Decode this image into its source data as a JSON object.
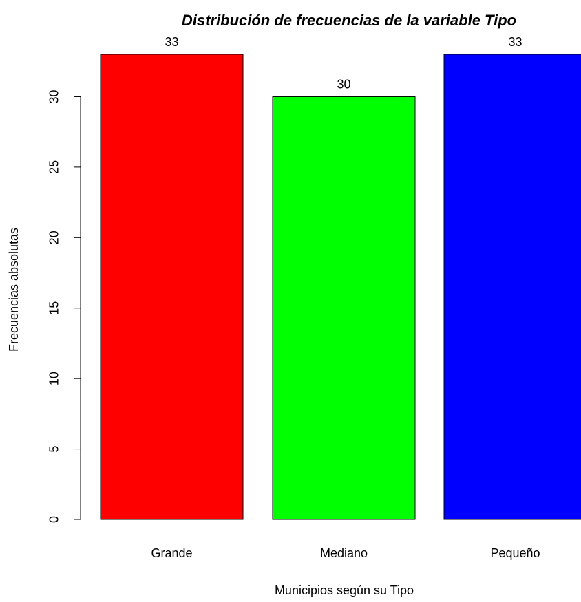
{
  "chart_data": {
    "type": "bar",
    "title": "Distribución de frecuencias de la variable Tipo",
    "xlabel": "Municipios según su Tipo",
    "ylabel": "Frecuencias absolutas",
    "categories": [
      "Grande",
      "Mediano",
      "Pequeño"
    ],
    "values": [
      33,
      30,
      33
    ],
    "data_labels": [
      "33",
      "30",
      "33"
    ],
    "colors": [
      "#ff0000",
      "#00ff00",
      "#0000ff"
    ],
    "ylim": [
      0,
      33
    ],
    "yticks": [
      0,
      5,
      10,
      15,
      20,
      25,
      30
    ],
    "ytick_labels": [
      "0",
      "5",
      "10",
      "15",
      "20",
      "25",
      "30"
    ],
    "grid": false,
    "legend": "none"
  }
}
